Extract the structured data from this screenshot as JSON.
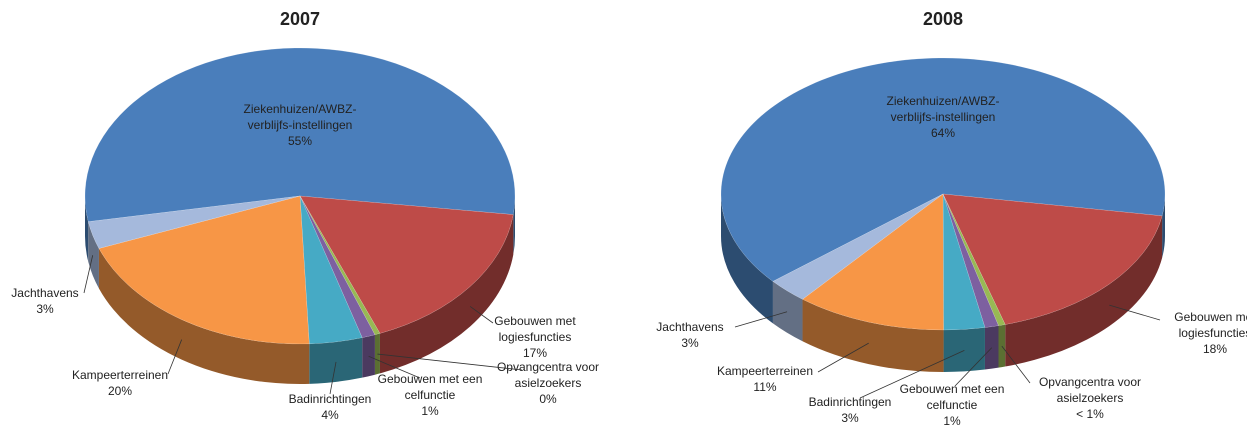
{
  "chart_data": [
    {
      "type": "pie",
      "title": "2007",
      "categories": [
        [
          "Ziekenhuizen/AWBZ-",
          "verblijfs-instellingen"
        ],
        [
          "Gebouwen met",
          "logiesfuncties"
        ],
        [
          "Opvangcentra voor",
          "asielzoekers"
        ],
        [
          "Gebouwen met een",
          "celfunctie"
        ],
        [
          "Badinrichtingen"
        ],
        [
          "Kampeerterreinen"
        ],
        [
          "Jachthavens"
        ]
      ],
      "values": [
        55,
        17,
        0.4,
        1,
        4,
        20,
        3
      ],
      "value_labels": [
        "55%",
        "17%",
        "0%",
        "1%",
        "4%",
        "20%",
        "3%"
      ],
      "colors": [
        "#4a7ebb",
        "#be4b48",
        "#98b954",
        "#7d60a0",
        "#46aac5",
        "#f79646",
        "#a5b9dc"
      ]
    },
    {
      "type": "pie",
      "title": "2008",
      "categories": [
        [
          "Ziekenhuizen/AWBZ-",
          "verblijfs-instellingen"
        ],
        [
          "Gebouwen met",
          "logiesfuncties"
        ],
        [
          "Opvangcentra voor",
          "asielzoekers"
        ],
        [
          "Gebouwen met een",
          "celfunctie"
        ],
        [
          "Badinrichtingen"
        ],
        [
          "Kampeerterreinen"
        ],
        [
          "Jachthavens"
        ]
      ],
      "values": [
        64,
        18,
        0.5,
        1,
        3,
        11,
        3
      ],
      "value_labels": [
        "64%",
        "18%",
        "< 1%",
        "1%",
        "3%",
        "11%",
        "3%"
      ],
      "colors": [
        "#4a7ebb",
        "#be4b48",
        "#98b954",
        "#7d60a0",
        "#46aac5",
        "#f79646",
        "#a5b9dc"
      ]
    }
  ]
}
